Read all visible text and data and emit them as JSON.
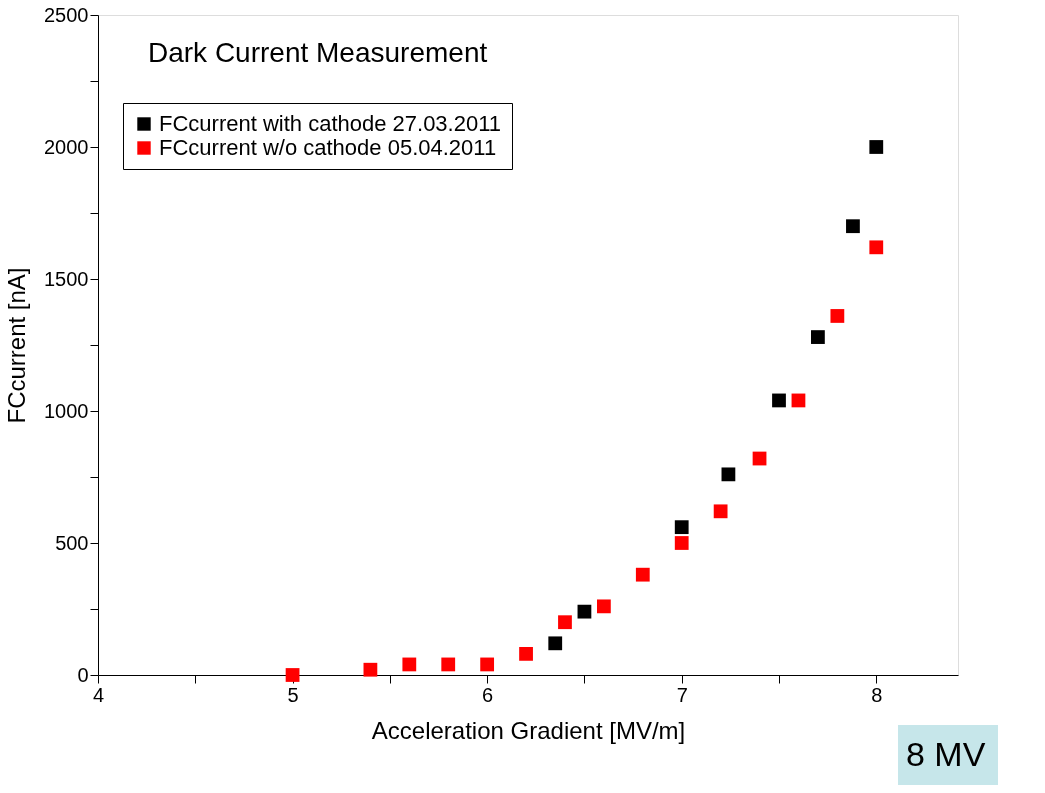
{
  "chart_data": {
    "type": "scatter",
    "title": "Dark Current Measurement",
    "xlabel": "Acceleration Gradient [MV/m]",
    "ylabel": "FCcurrent [nA]",
    "series": [
      {
        "name": "FCcurrent with cathode 27.03.2011",
        "color": "#000000",
        "x": [
          6.35,
          6.5,
          7.0,
          7.24,
          7.5,
          7.7,
          7.88,
          8.0
        ],
        "values": [
          120,
          240,
          560,
          760,
          1040,
          1280,
          1700,
          2000
        ]
      },
      {
        "name": "FCcurrent w/o cathode 05.04.2011",
        "color": "#ff0000",
        "x": [
          5.0,
          5.4,
          5.6,
          5.8,
          6.0,
          6.2,
          6.4,
          6.6,
          6.8,
          7.0,
          7.2,
          7.4,
          7.6,
          7.8,
          8.0
        ],
        "values": [
          0,
          20,
          40,
          40,
          40,
          80,
          200,
          260,
          380,
          500,
          620,
          820,
          1040,
          1360,
          1620
        ]
      }
    ],
    "xlim": [
      4,
      8.42
    ],
    "xticks": [
      4,
      {
        "value": 4.5,
        "label": null
      },
      5,
      {
        "value": 5.5,
        "label": null
      },
      6,
      {
        "value": 6.5,
        "label": null
      },
      7,
      {
        "value": 7.5,
        "label": null
      },
      8
    ],
    "ylim": [
      0,
      2500
    ],
    "yticks": [
      0,
      {
        "value": 250,
        "label": null
      },
      500,
      {
        "value": 750,
        "label": null
      },
      1000,
      {
        "value": 1250,
        "label": null
      },
      1500,
      {
        "value": 1750,
        "label": null
      },
      2000,
      {
        "value": 2250,
        "label": null
      },
      2500
    ],
    "marker": "square",
    "legend": "top left",
    "grid": false,
    "annotations": [
      "8 MV"
    ]
  }
}
